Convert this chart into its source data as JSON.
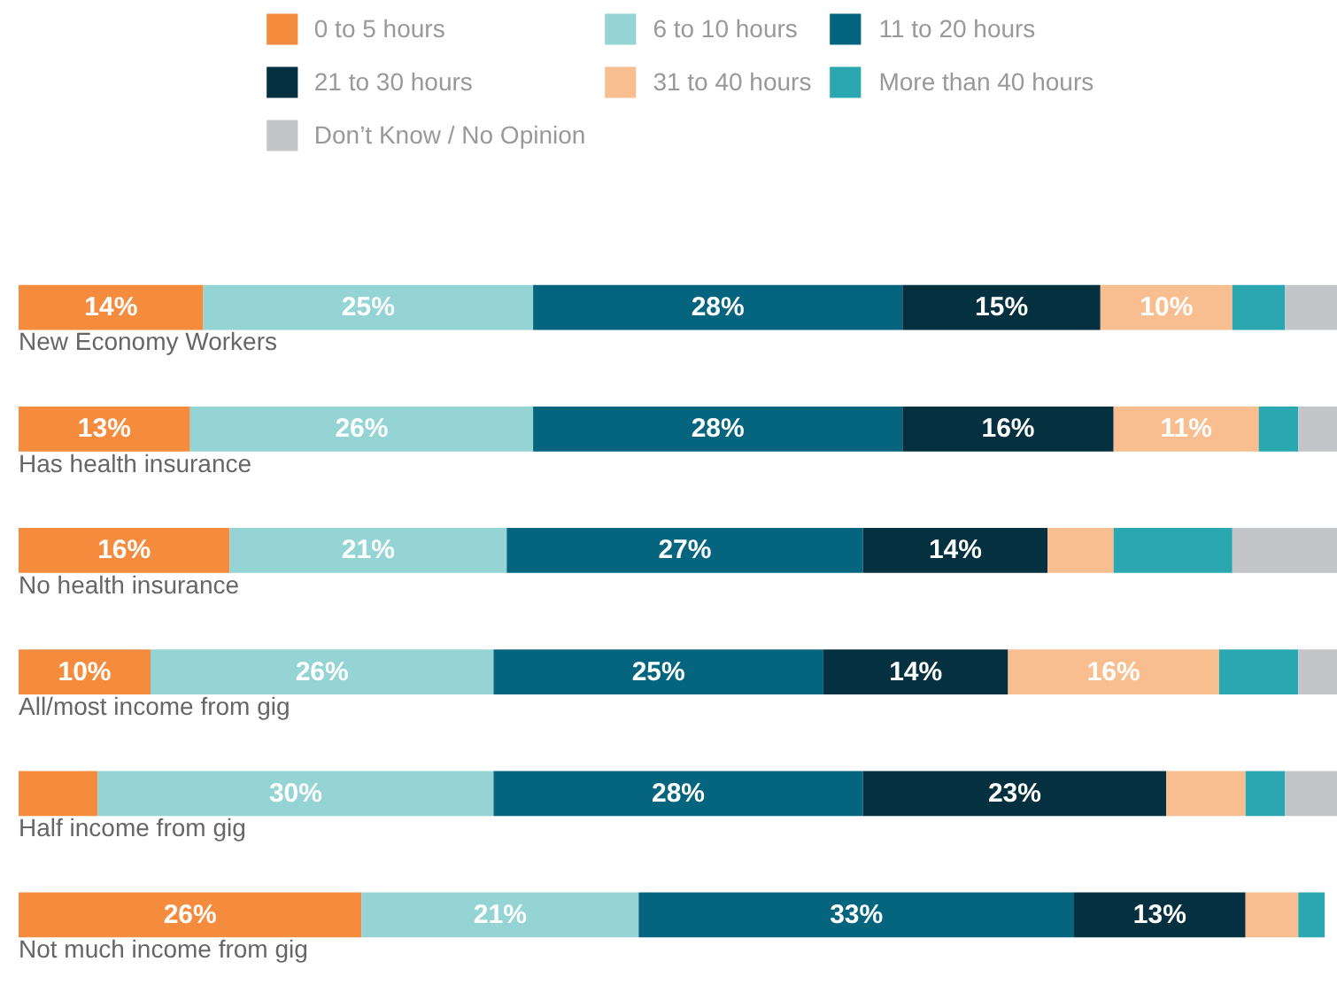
{
  "chart_data": {
    "type": "bar",
    "orientation": "horizontal",
    "stacked": true,
    "legend": "top",
    "xlim": [
      0,
      100
    ],
    "tick_labels": false,
    "grid": false,
    "categories": [
      "New Economy Workers",
      "Has health insurance",
      "No health insurance",
      "All/most income from gig",
      "Half income from gig",
      "Not much income from gig"
    ],
    "series": [
      {
        "name": "0 to 5 hours",
        "color": "#f58b3c",
        "values": [
          14,
          13,
          16,
          10,
          6,
          26
        ],
        "value_labels": [
          "14%",
          "13%",
          "16%",
          "10%",
          null,
          "26%"
        ]
      },
      {
        "name": "6 to 10 hours",
        "color": "#94d4d4",
        "values": [
          25,
          26,
          21,
          26,
          30,
          21
        ],
        "value_labels": [
          "25%",
          "26%",
          "21%",
          "26%",
          "30%",
          "21%"
        ]
      },
      {
        "name": "11 to 20 hours",
        "color": "#05657f",
        "values": [
          28,
          28,
          27,
          25,
          28,
          33
        ],
        "value_labels": [
          "28%",
          "28%",
          "27%",
          "25%",
          "28%",
          "33%"
        ]
      },
      {
        "name": "21 to 30 hours",
        "color": "#04303f",
        "values": [
          15,
          16,
          14,
          14,
          23,
          13
        ],
        "value_labels": [
          "15%",
          "16%",
          "14%",
          "14%",
          "23%",
          "13%"
        ]
      },
      {
        "name": "31 to 40 hours",
        "color": "#f9be90",
        "values": [
          10,
          11,
          5,
          16,
          6,
          4
        ],
        "value_labels": [
          "10%",
          "11%",
          null,
          "16%",
          null,
          null
        ]
      },
      {
        "name": "More than 40 hours",
        "color": "#2aa7b0",
        "values": [
          4,
          3,
          9,
          6,
          3,
          2
        ],
        "value_labels": [
          null,
          null,
          null,
          null,
          null,
          null
        ]
      },
      {
        "name": "Don’t Know / No Opinion",
        "color": "#c3c5c8",
        "values": [
          4,
          3,
          8,
          3,
          4,
          0
        ],
        "value_labels": [
          null,
          null,
          null,
          null,
          null,
          null
        ]
      }
    ]
  }
}
